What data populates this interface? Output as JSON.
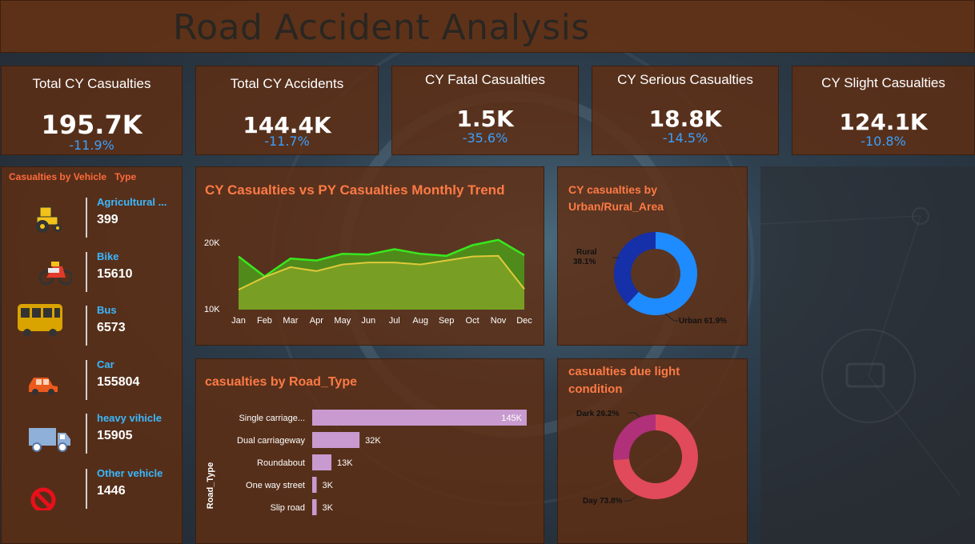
{
  "header": {
    "title": "Road Accident Analysis"
  },
  "kpis": [
    {
      "title": "Total CY Casualties",
      "value": "195.7K",
      "delta": "-11.9%"
    },
    {
      "title": "Total CY Accidents",
      "value": "144.4K",
      "delta": "-11.7%"
    },
    {
      "title": "CY Fatal Casualties",
      "value": "1.5K",
      "delta": "-35.6%"
    },
    {
      "title": "CY Serious Casualties",
      "value": "18.8K",
      "delta": "-14.5%"
    },
    {
      "title": "CY Slight Casualties",
      "value": "124.1K",
      "delta": "-10.8%"
    }
  ],
  "vehicles": {
    "title": "Casualties by Vehicle   Type",
    "items": [
      {
        "name": "Agricultural ...",
        "value": "399",
        "icon": "tractor-icon"
      },
      {
        "name": "Bike",
        "value": "15610",
        "icon": "motorbike-icon"
      },
      {
        "name": "Bus",
        "value": "6573",
        "icon": "bus-icon"
      },
      {
        "name": "Car",
        "value": "155804",
        "icon": "car-icon"
      },
      {
        "name": "heavy vihicle",
        "value": "15905",
        "icon": "truck-icon"
      },
      {
        "name": "Other vehicle",
        "value": "1446",
        "icon": "prohibited-icon"
      }
    ]
  },
  "colors": {
    "cy_line": "#39e81e",
    "py_line": "#e0c93a",
    "area_fill": "#7aa024",
    "urban": "#1e8bff",
    "rural": "#1530a8",
    "day": "#e04a5a",
    "dark": "#b0307a",
    "bar": "#c89ad0",
    "accent": "#ff7a45",
    "delta": "#3aa0ff"
  },
  "chart_data": [
    {
      "type": "area",
      "title": "CY Casualties vs PY Casualties Monthly Trend",
      "categories": [
        "Jan",
        "Feb",
        "Mar",
        "Apr",
        "May",
        "Jun",
        "Jul",
        "Aug",
        "Sep",
        "Oct",
        "Nov",
        "Dec"
      ],
      "yticks": [
        "20K",
        "10K"
      ],
      "ylim": [
        10000,
        20000
      ],
      "series": [
        {
          "values": [
            18000,
            15000,
            17700,
            17400,
            18400,
            18300,
            19100,
            18400,
            18100,
            19700,
            20500,
            18200
          ]
        },
        {
          "values": [
            13000,
            14900,
            16400,
            15800,
            16800,
            17100,
            17100,
            16800,
            17400,
            18000,
            18100,
            13100
          ]
        }
      ]
    },
    {
      "type": "pie",
      "title": "CY casualties by Urban/Rural_Area",
      "labels": [
        "Urban",
        "Rural"
      ],
      "values": [
        61.9,
        38.1
      ],
      "label_text": [
        "Urban 61.9%",
        "Rural",
        "38.1%"
      ]
    },
    {
      "type": "bar",
      "title": "casualties by Road_Type",
      "ylabel": "Road_Type",
      "categories": [
        "Single carriage...",
        "Dual carriageway",
        "Roundabout",
        "One way street",
        "Slip road"
      ],
      "values": [
        145000,
        32000,
        13000,
        3000,
        3000
      ],
      "data_labels": [
        "145K",
        "32K",
        "13K",
        "3K",
        "3K"
      ]
    },
    {
      "type": "pie",
      "title": "casualties due light condition",
      "labels": [
        "Day",
        "Dark"
      ],
      "values": [
        73.8,
        26.2
      ],
      "label_text": [
        "Day 73.8%",
        "Dark 26.2%"
      ]
    }
  ]
}
